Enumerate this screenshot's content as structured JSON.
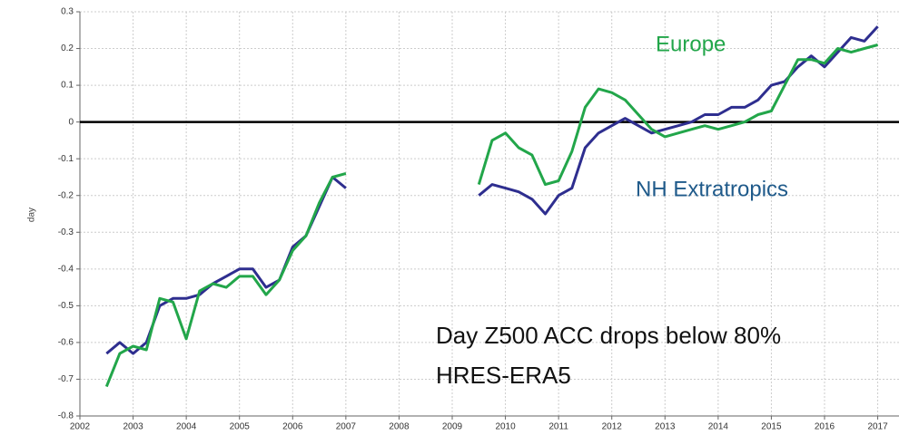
{
  "chart_data": {
    "type": "line",
    "y_label": "day",
    "annotations": [
      "Europe",
      "NH Extratropics",
      "Day Z500 ACC drops below 80%",
      "HRES-ERA5"
    ],
    "x": [
      2002.5,
      2002.75,
      2003.0,
      2003.25,
      2003.5,
      2003.75,
      2004.0,
      2004.25,
      2004.5,
      2004.75,
      2005.0,
      2005.25,
      2005.5,
      2005.75,
      2006.0,
      2006.25,
      2006.5,
      2006.75,
      2007.0,
      2008.0,
      2009.5,
      2009.75,
      2010.0,
      2010.25,
      2010.5,
      2010.75,
      2011.0,
      2011.25,
      2011.5,
      2011.75,
      2012.0,
      2012.25,
      2012.5,
      2012.75,
      2013.0,
      2013.25,
      2013.5,
      2013.75,
      2014.0,
      2014.25,
      2014.5,
      2014.75,
      2015.0,
      2015.25,
      2015.5,
      2015.75,
      2016.0,
      2016.25,
      2016.5,
      2016.75,
      2017.0
    ],
    "series": [
      {
        "name": "NH Extratropics",
        "color": "#2e2e8f",
        "values": [
          -0.63,
          -0.6,
          -0.63,
          -0.6,
          -0.5,
          -0.48,
          -0.48,
          -0.47,
          -0.44,
          -0.42,
          -0.4,
          -0.4,
          -0.45,
          -0.43,
          -0.34,
          -0.31,
          -0.23,
          -0.15,
          -0.18,
          null,
          -0.2,
          -0.17,
          -0.18,
          -0.19,
          -0.21,
          -0.25,
          -0.2,
          -0.18,
          -0.07,
          -0.03,
          -0.01,
          0.01,
          -0.01,
          -0.03,
          -0.02,
          -0.01,
          0.0,
          0.02,
          0.02,
          0.04,
          0.04,
          0.06,
          0.1,
          0.11,
          0.15,
          0.18,
          0.15,
          0.19,
          0.23,
          0.22,
          0.26
        ]
      },
      {
        "name": "Europe",
        "color": "#22a64a",
        "values": [
          -0.72,
          -0.63,
          -0.61,
          -0.62,
          -0.48,
          -0.49,
          -0.59,
          -0.46,
          -0.44,
          -0.45,
          -0.42,
          -0.42,
          -0.47,
          -0.43,
          -0.35,
          -0.31,
          -0.22,
          -0.15,
          -0.14,
          null,
          -0.17,
          -0.05,
          -0.03,
          -0.07,
          -0.09,
          -0.17,
          -0.16,
          -0.08,
          0.04,
          0.09,
          0.08,
          0.06,
          0.02,
          -0.02,
          -0.04,
          -0.03,
          -0.02,
          -0.01,
          -0.02,
          -0.01,
          0.0,
          0.02,
          0.03,
          0.1,
          0.17,
          0.17,
          0.16,
          0.2,
          0.19,
          0.2,
          0.21
        ]
      }
    ],
    "xlim": [
      2002,
      2017.4
    ],
    "xticks": [
      2002,
      2003,
      2004,
      2005,
      2006,
      2007,
      2008,
      2009,
      2010,
      2011,
      2012,
      2013,
      2014,
      2015,
      2016,
      2017
    ],
    "ylim": [
      -0.8,
      0.3
    ],
    "yticks": [
      0.3,
      0.2,
      0.1,
      0,
      -0.1,
      -0.2,
      -0.3,
      -0.4,
      -0.5,
      -0.6,
      -0.7,
      -0.8
    ],
    "grid": true,
    "zero_line": true
  }
}
